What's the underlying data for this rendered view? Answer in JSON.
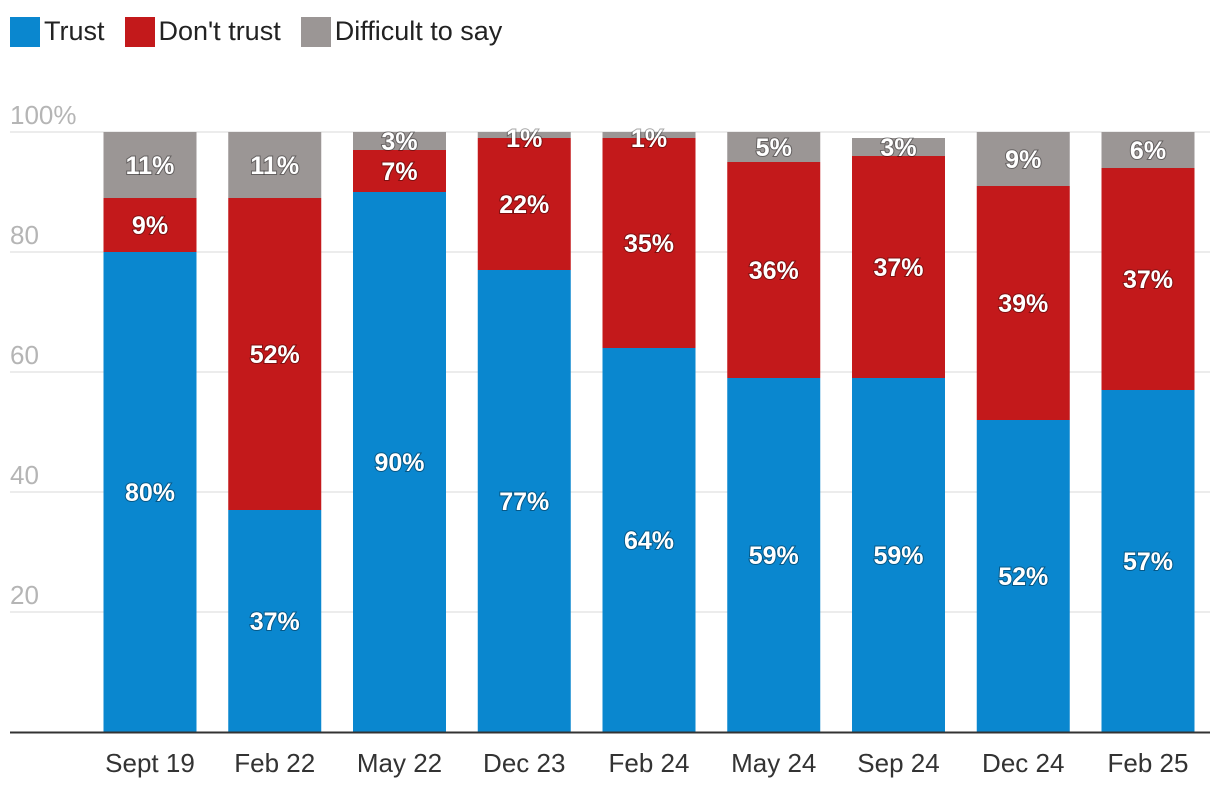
{
  "chart_data": {
    "type": "bar",
    "stacked": true,
    "categories": [
      "Sept 19",
      "Feb 22",
      "May 22",
      "Dec 23",
      "Feb 24",
      "May 24",
      "Sep 24",
      "Dec 24",
      "Feb 25"
    ],
    "series": [
      {
        "name": "Trust",
        "color": "#0a87cf",
        "values": [
          80,
          37,
          90,
          77,
          64,
          59,
          59,
          52,
          57
        ]
      },
      {
        "name": "Don't trust",
        "color": "#c3191b",
        "values": [
          9,
          52,
          7,
          22,
          35,
          36,
          37,
          39,
          37
        ]
      },
      {
        "name": "Difficult to say",
        "color": "#9b9695",
        "values": [
          11,
          11,
          3,
          1,
          1,
          5,
          3,
          9,
          6
        ]
      }
    ],
    "yticks": [
      {
        "value": 100,
        "label": "100%"
      },
      {
        "value": 80,
        "label": "80"
      },
      {
        "value": 60,
        "label": "60"
      },
      {
        "value": 40,
        "label": "40"
      },
      {
        "value": 20,
        "label": "20"
      }
    ],
    "ylim": [
      0,
      100
    ],
    "legend_position": "top-left",
    "title": "",
    "xlabel": "",
    "ylabel": ""
  }
}
